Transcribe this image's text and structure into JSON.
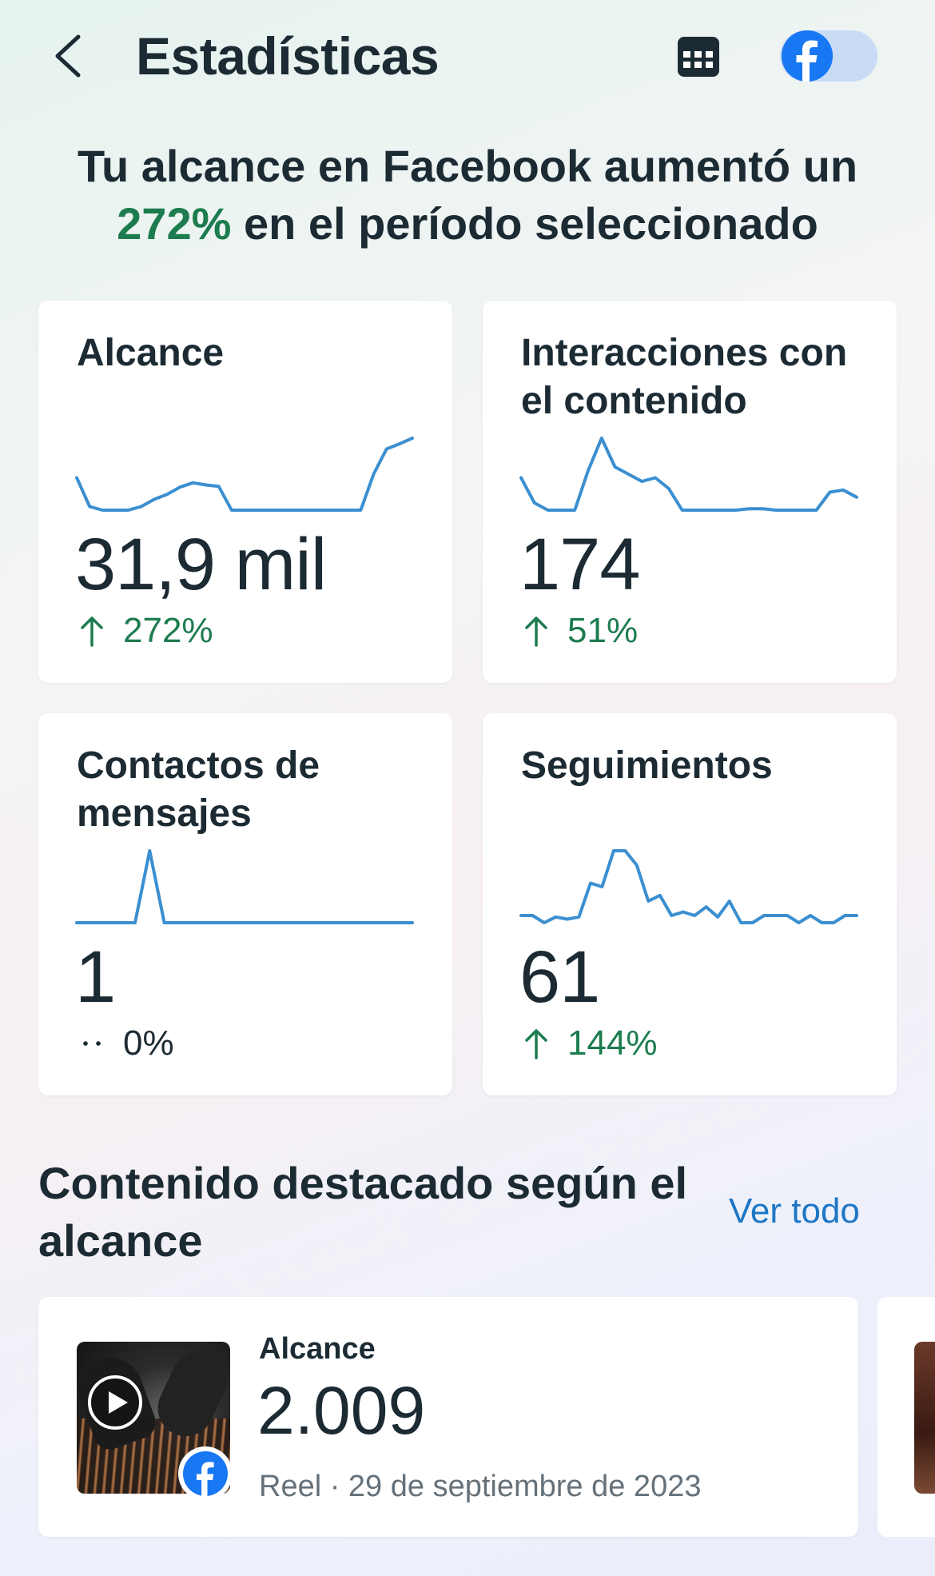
{
  "header": {
    "title": "Estadísticas",
    "icons": [
      "back-arrow",
      "calendar",
      "facebook-toggle"
    ]
  },
  "headline": {
    "line1": "Tu alcance en Facebook aumentó un",
    "percent": "272%",
    "line2": "en el período seleccionado"
  },
  "cards": [
    {
      "title": "Alcance",
      "value": "31,9 mil",
      "change": "272%",
      "trend": "up",
      "sparkline": [
        0.45,
        0.05,
        0.0,
        0.0,
        0.0,
        0.05,
        0.15,
        0.22,
        0.32,
        0.38,
        0.35,
        0.33,
        0.0,
        0.0,
        0.0,
        0.0,
        0.0,
        0.0,
        0.0,
        0.0,
        0.0,
        0.0,
        0.0,
        0.5,
        0.85,
        0.92,
        1.0
      ]
    },
    {
      "title": "Interacciones con el contenido",
      "value": "174",
      "change": "51%",
      "trend": "up",
      "sparkline": [
        0.45,
        0.1,
        0.0,
        0.0,
        0.0,
        0.55,
        1.0,
        0.6,
        0.5,
        0.4,
        0.45,
        0.3,
        0.0,
        0.0,
        0.0,
        0.0,
        0.0,
        0.02,
        0.02,
        0.0,
        0.0,
        0.0,
        0.0,
        0.25,
        0.28,
        0.18
      ]
    },
    {
      "title": "Contactos de mensajes",
      "value": "1",
      "change": "0%",
      "trend": "neutral",
      "sparkline": [
        0.0,
        0.0,
        0.0,
        0.0,
        0.0,
        1.0,
        0.0,
        0.0,
        0.0,
        0.0,
        0.0,
        0.0,
        0.0,
        0.0,
        0.0,
        0.0,
        0.0,
        0.0,
        0.0,
        0.0,
        0.0,
        0.0,
        0.0,
        0.0
      ]
    },
    {
      "title": "Seguimientos",
      "value": "61",
      "change": "144%",
      "trend": "up",
      "sparkline": [
        0.1,
        0.1,
        0.0,
        0.08,
        0.05,
        0.08,
        0.55,
        0.5,
        1.0,
        1.0,
        0.8,
        0.3,
        0.38,
        0.1,
        0.15,
        0.1,
        0.22,
        0.08,
        0.3,
        0.0,
        0.0,
        0.1,
        0.1,
        0.1,
        0.0,
        0.1,
        0.0,
        0.0,
        0.1,
        0.1
      ]
    }
  ],
  "section": {
    "title": "Contenido destacado según el alcance",
    "see_all": "Ver todo"
  },
  "top_content": {
    "label": "Alcance",
    "value": "2.009",
    "meta": "Reel · 29 de septiembre de 2023"
  },
  "colors": {
    "text": "#1c2b33",
    "positive": "#1d7c4f",
    "sparkline": "#3b8fd0",
    "link": "#1d76c6",
    "facebook": "#1877f2"
  }
}
